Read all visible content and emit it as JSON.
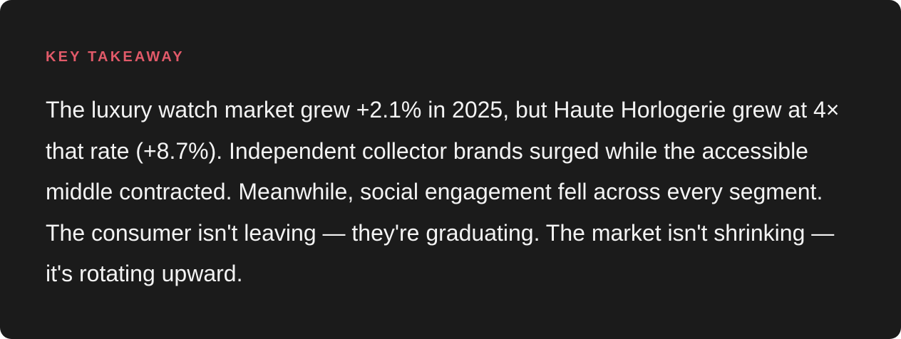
{
  "takeaway": {
    "label": "KEY TAKEAWAY",
    "body": "The luxury watch market grew +2.1% in 2025, but Haute Horlogerie grew at 4× that rate (+8.7%). Independent collector brands surged while the accessible middle contracted. Meanwhile, social engagement fell across every segment. The consumer isn't leaving — they're graduating. The market isn't shrinking — it's rotating upward."
  },
  "colors": {
    "card_background": "#1b1b1b",
    "label": "#e15a69",
    "body": "#f3f3f3"
  }
}
